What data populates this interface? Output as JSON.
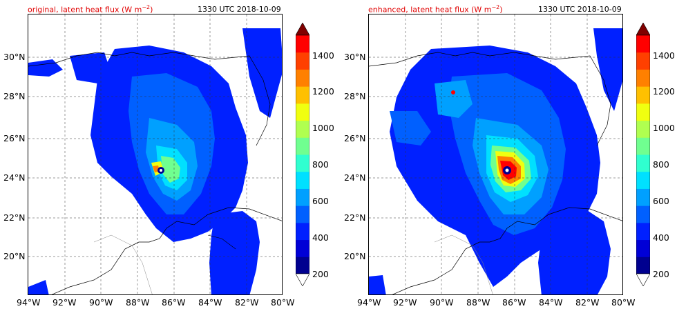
{
  "panels": [
    {
      "title": "original, latent heat flux (W m",
      "title_unit_sup": "−2",
      "title_tail": ")",
      "timestamp": "1330 UTC 2018-10-09"
    },
    {
      "title": "enhanced, latent heat flux (W m",
      "title_unit_sup": "−2",
      "title_tail": ")",
      "timestamp": "1330 UTC 2018-10-09"
    }
  ],
  "lat_ticks": [
    "30°N",
    "28°N",
    "26°N",
    "24°N",
    "22°N",
    "20°N"
  ],
  "lon_ticks": [
    "94°W",
    "92°W",
    "90°W",
    "88°W",
    "86°W",
    "84°W",
    "82°W",
    "80°W"
  ],
  "colorbar": {
    "ticks": [
      "1400",
      "1200",
      "1000",
      "800",
      "600",
      "400",
      "200"
    ],
    "colors": [
      "#00008f",
      "#0000d6",
      "#0020ff",
      "#0060ff",
      "#00a0ff",
      "#00e0ff",
      "#30ffd0",
      "#70ff90",
      "#b0ff50",
      "#f0ff10",
      "#ffc000",
      "#ff8000",
      "#ff4000",
      "#ff0000",
      "#c00000",
      "#800000"
    ]
  }
}
